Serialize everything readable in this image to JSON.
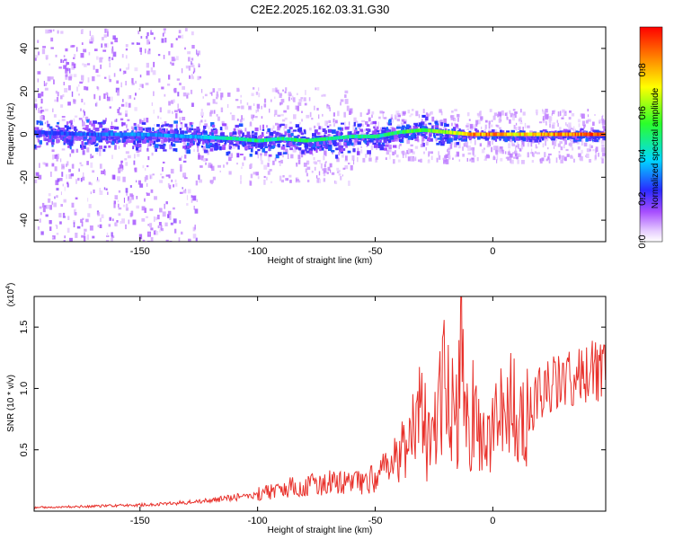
{
  "title": "C2E2.2025.162.03.31.G30",
  "chart_data": [
    {
      "type": "heatmap",
      "xlabel": "Height of straight line (km)",
      "ylabel": "Frequency (Hz)",
      "xlim": [
        -195,
        48
      ],
      "ylim": [
        -50,
        50
      ],
      "xticks": [
        -150,
        -100,
        -50,
        0
      ],
      "yticks": [
        -40,
        -20,
        0,
        20,
        40
      ],
      "x_tick_labels": [
        "-150",
        "-100",
        "-50",
        "0"
      ],
      "y_tick_labels": [
        "-40",
        "-20",
        "0",
        "20",
        "40"
      ],
      "colormap": "rainbow (white-violet-blue-cyan-green-yellow-red)",
      "ridge": {
        "x": [
          -195,
          -175,
          -150,
          -130,
          -110,
          -100,
          -90,
          -80,
          -70,
          -60,
          -50,
          -40,
          -30,
          -20,
          -10,
          0,
          10,
          20,
          30,
          48
        ],
        "frequency": [
          1,
          0,
          0,
          -1,
          -2,
          -3,
          -2,
          -3,
          -2,
          -1,
          -1,
          1,
          2,
          1,
          0,
          0,
          0,
          0,
          0,
          0
        ],
        "normalized_amplitude": [
          0.25,
          0.3,
          0.35,
          0.35,
          0.5,
          0.5,
          0.5,
          0.55,
          0.5,
          0.5,
          0.5,
          0.55,
          0.6,
          0.65,
          0.9,
          0.9,
          0.8,
          0.9,
          0.95,
          0.95
        ]
      },
      "colorbar": {
        "label": "Normalized spectral amplitude",
        "range": [
          0,
          1
        ],
        "ticks": [
          0.0,
          0.2,
          0.4,
          0.6,
          0.8
        ],
        "tick_labels": [
          "0.0",
          "0.2",
          "0.4",
          "0.6",
          "0.8"
        ]
      },
      "colors": {
        "ridge_high": "#ff2a2a",
        "ridge_mid": "#3cff3c",
        "ridge_low": "#2a4dff",
        "scatter": "#7a1cff"
      }
    },
    {
      "type": "line",
      "xlabel": "Height of straight line (km)",
      "ylabel": "SNR (10 * v/v)",
      "y_scale_label": "(x10",
      "y_scale_exponent": "4",
      "xlim": [
        -195,
        48
      ],
      "ylim": [
        0,
        17500
      ],
      "xticks": [
        -150,
        -100,
        -50,
        0
      ],
      "yticks": [
        5000,
        10000,
        15000
      ],
      "x_tick_labels": [
        "-150",
        "-100",
        "-50",
        "0"
      ],
      "y_tick_labels": [
        "0.5",
        "1.0",
        "1.5"
      ],
      "series": [
        {
          "color": "#e8302a",
          "x": [
            -195,
            -170,
            -150,
            -140,
            -130,
            -125,
            -120,
            -110,
            -100,
            -95,
            -90,
            -85,
            -80,
            -70,
            -60,
            -55,
            -50,
            -45,
            -40,
            -35,
            -32,
            -30,
            -28,
            -25,
            -23,
            -20,
            -18,
            -15,
            -13,
            -12,
            -10,
            -8,
            -5,
            -3,
            0,
            3,
            5,
            8,
            10,
            13,
            15,
            18,
            20,
            25,
            30,
            35,
            40,
            45,
            48
          ],
          "y": [
            300,
            400,
            500,
            600,
            700,
            800,
            900,
            1100,
            1400,
            1600,
            1800,
            2000,
            2200,
            2300,
            2400,
            2500,
            2700,
            3500,
            4500,
            6000,
            8000,
            11000,
            5000,
            6000,
            8000,
            11000,
            7000,
            6500,
            17500,
            6000,
            6000,
            6500,
            7000,
            6500,
            7000,
            8000,
            9000,
            8500,
            8500,
            7500,
            8000,
            9000,
            9500,
            10200,
            10600,
            10900,
            11100,
            11300,
            11300
          ]
        }
      ]
    }
  ]
}
